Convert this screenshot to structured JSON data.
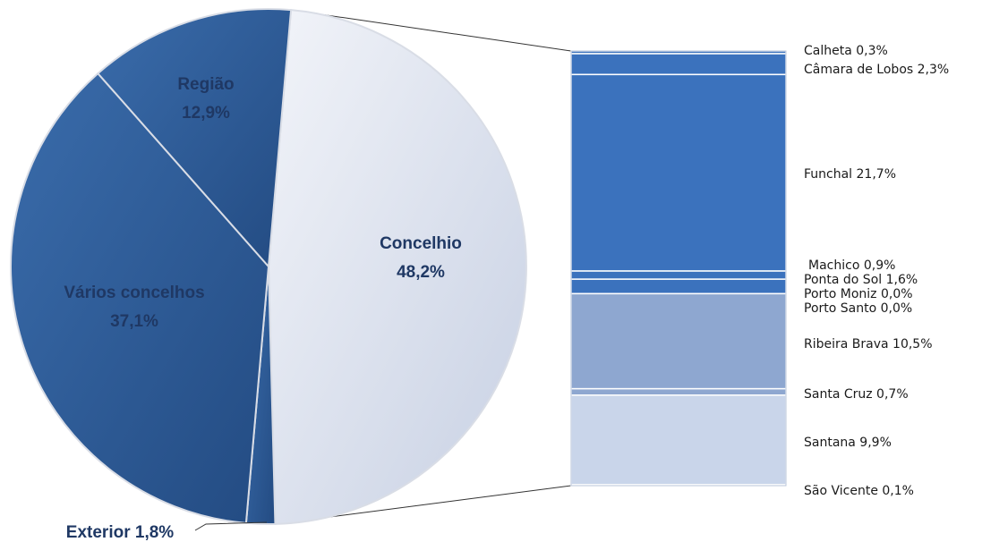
{
  "chart_data": {
    "type": "bar-of-pie",
    "pie": {
      "slices": [
        {
          "label": "Concelhio",
          "value": 48.2,
          "value_text": "48,2%",
          "color": "#dde3ef"
        },
        {
          "label": "Exterior",
          "value": 1.8,
          "value_text": "1,8%",
          "color": "#2e5b97"
        },
        {
          "label": "Vários concelhos",
          "value": 37.1,
          "value_text": "37,1%",
          "color": "#2e5b97"
        },
        {
          "label": "Região",
          "value": 12.9,
          "value_text": "12,9%",
          "color": "#2e5b97"
        }
      ]
    },
    "bar": {
      "segments": [
        {
          "label": "Calheta",
          "value": 0.3,
          "text": "Calheta 0,3%",
          "color": "#3b72bd"
        },
        {
          "label": "Câmara de Lobos",
          "value": 2.3,
          "text": "Câmara de Lobos 2,3%",
          "color": "#3b72bd"
        },
        {
          "label": "Funchal",
          "value": 21.7,
          "text": "Funchal 21,7%",
          "color": "#3b72bd"
        },
        {
          "label": "Machico",
          "value": 0.9,
          "text": "Machico 0,9%",
          "color": "#3b72bd"
        },
        {
          "label": "Ponta do Sol",
          "value": 1.6,
          "text": "Ponta do Sol 1,6%",
          "color": "#3b72bd"
        },
        {
          "label": "Porto Moniz",
          "value": 0.0,
          "text": "Porto Moniz 0,0%",
          "color": "#8ea7d0"
        },
        {
          "label": "Porto Santo",
          "value": 0.0,
          "text": "Porto Santo 0,0%",
          "color": "#8ea7d0"
        },
        {
          "label": "Ribeira Brava",
          "value": 10.5,
          "text": "Ribeira Brava 10,5%",
          "color": "#8ea7d0"
        },
        {
          "label": "Santa Cruz",
          "value": 0.7,
          "text": "Santa Cruz 0,7%",
          "color": "#8ea7d0"
        },
        {
          "label": "Santana",
          "value": 9.9,
          "text": "Santana 9,9%",
          "color": "#c9d5ea"
        },
        {
          "label": "São Vicente",
          "value": 0.1,
          "text": "São Vicente 0,1%",
          "color": "#c9d5ea"
        }
      ]
    }
  }
}
